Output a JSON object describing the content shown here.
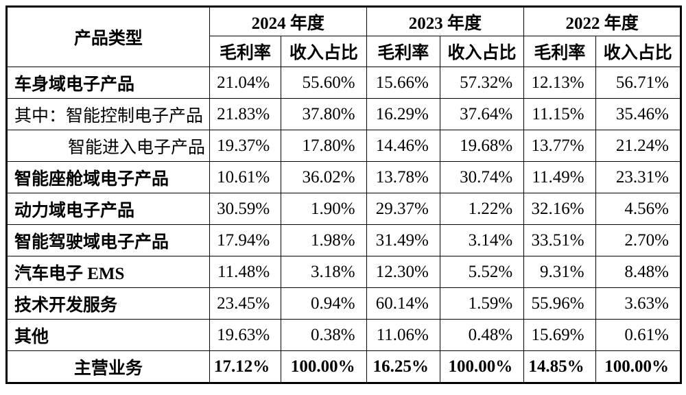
{
  "table": {
    "product_type_header": "产品类型",
    "year_groups": [
      {
        "label": "2024 年度",
        "sub": [
          "毛利率",
          "收入占比"
        ]
      },
      {
        "label": "2023 年度",
        "sub": [
          "毛利率",
          "收入占比"
        ]
      },
      {
        "label": "2022 年度",
        "sub": [
          "毛利率",
          "收入占比"
        ]
      }
    ],
    "rows": [
      {
        "label": "车身域电子产品",
        "bold": true,
        "indent": false,
        "total": false,
        "values": [
          "21.04%",
          "55.60%",
          "15.66%",
          "57.32%",
          "12.13%",
          "56.71%"
        ]
      },
      {
        "label": "其中：智能控制电子产品",
        "bold": false,
        "indent": false,
        "total": false,
        "values": [
          "21.83%",
          "37.80%",
          "16.29%",
          "37.64%",
          "11.15%",
          "35.46%"
        ]
      },
      {
        "label": "智能进入电子产品",
        "bold": false,
        "indent": true,
        "total": false,
        "values": [
          "19.37%",
          "17.80%",
          "14.46%",
          "19.68%",
          "13.77%",
          "21.24%"
        ]
      },
      {
        "label": "智能座舱域电子产品",
        "bold": true,
        "indent": false,
        "total": false,
        "values": [
          "10.61%",
          "36.02%",
          "13.78%",
          "30.74%",
          "11.49%",
          "23.31%"
        ]
      },
      {
        "label": "动力域电子产品",
        "bold": true,
        "indent": false,
        "total": false,
        "values": [
          "30.59%",
          "1.90%",
          "29.37%",
          "1.22%",
          "32.16%",
          "4.56%"
        ]
      },
      {
        "label": "智能驾驶域电子产品",
        "bold": true,
        "indent": false,
        "total": false,
        "values": [
          "17.94%",
          "1.98%",
          "31.49%",
          "3.14%",
          "33.51%",
          "2.70%"
        ]
      },
      {
        "label": "汽车电子 EMS",
        "bold": true,
        "indent": false,
        "total": false,
        "values": [
          "11.48%",
          "3.18%",
          "12.30%",
          "5.52%",
          "9.31%",
          "8.48%"
        ]
      },
      {
        "label": "技术开发服务",
        "bold": true,
        "indent": false,
        "total": false,
        "values": [
          "23.45%",
          "0.94%",
          "60.14%",
          "1.59%",
          "55.96%",
          "3.63%"
        ]
      },
      {
        "label": "其他",
        "bold": true,
        "indent": false,
        "total": false,
        "values": [
          "19.63%",
          "0.38%",
          "11.06%",
          "0.48%",
          "15.69%",
          "0.61%"
        ]
      },
      {
        "label": "主营业务",
        "bold": true,
        "indent": false,
        "total": true,
        "values": [
          "17.12%",
          "100.00%",
          "16.25%",
          "100.00%",
          "14.85%",
          "100.00%"
        ]
      }
    ]
  }
}
